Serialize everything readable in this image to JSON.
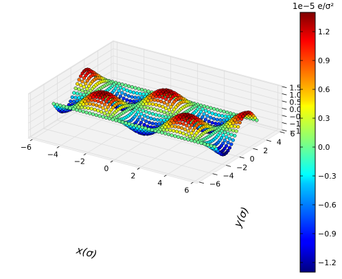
{
  "chart_data": {
    "type": "scatter",
    "projection": "3d",
    "surface": "z = A * sin(y) * cos(x)",
    "x": {
      "label": "x(σ)",
      "range": [
        -6,
        6
      ],
      "ticks": [
        "−6",
        "−4",
        "−2",
        "0",
        "2",
        "4",
        "6"
      ]
    },
    "y": {
      "label": "y(σ)",
      "range": [
        -6,
        6
      ],
      "ticks": [
        "−6",
        "−4",
        "−2",
        "0",
        "2",
        "4",
        "6"
      ]
    },
    "z": {
      "range": [
        -1.5,
        1.5
      ],
      "ticks": [
        "−1.5",
        "−1.0",
        "−0.5",
        "0.0",
        "0.5",
        "1.0",
        "1.5"
      ]
    },
    "point_grid": {
      "x_range": [
        -6,
        6
      ],
      "y_range": [
        -3.14,
        3.14
      ],
      "nx": 50,
      "ny": 26
    },
    "colorbar": {
      "title": "1e−5 e/σ²",
      "range": [
        -1.3,
        1.4
      ],
      "ticks": [
        "1.2",
        "0.9",
        "0.6",
        "0.3",
        "0.0",
        "−0.3",
        "−0.6",
        "−0.9",
        "−1.2"
      ],
      "tick_values": [
        1.2,
        0.9,
        0.6,
        0.3,
        0.0,
        -0.3,
        -0.6,
        -0.9,
        -1.2
      ],
      "colormap": "jet"
    },
    "grid": true,
    "pane_color": "#f2f2f2",
    "marker_edge_color": "#000000"
  }
}
